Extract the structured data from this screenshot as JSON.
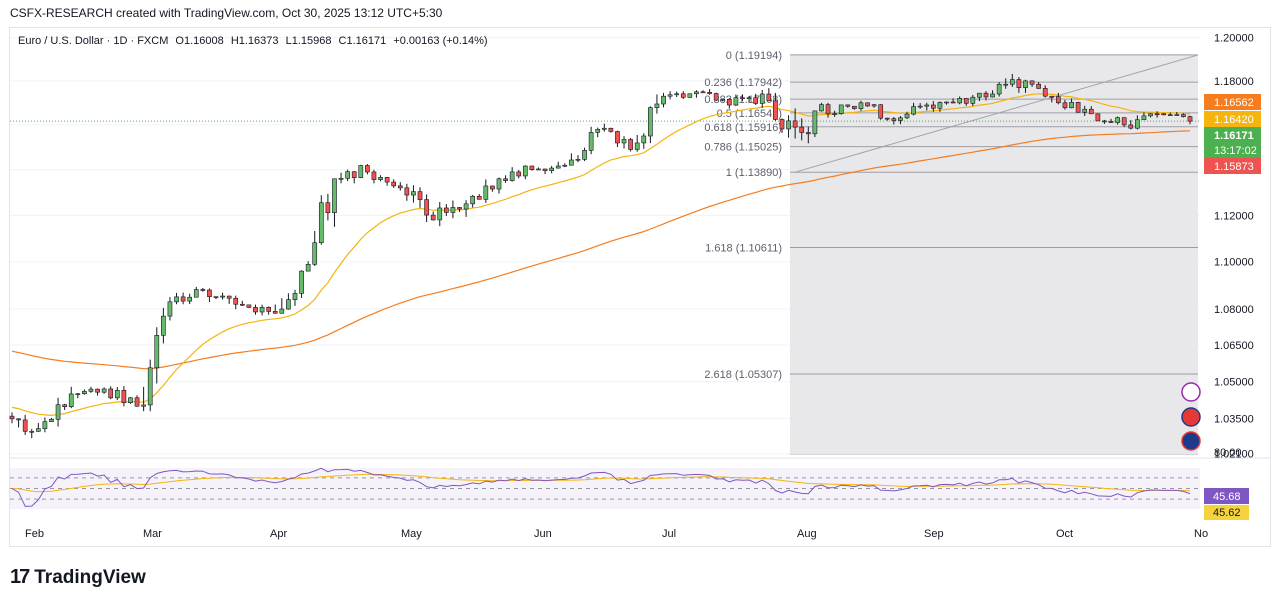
{
  "header": {
    "credit": "CSFX-RESEARCH created with TradingView.com, Oct 30, 2025 13:12 UTC+5:30"
  },
  "legend": {
    "symbol": "Euro / U.S. Dollar · 1D · FXCM",
    "open": "O1.16008",
    "high": "H1.16373",
    "low": "L1.15968",
    "close": "C1.16171",
    "change": "+0.00163 (+0.14%)"
  },
  "branding": {
    "logo_text": "TradingView"
  },
  "colors": {
    "up": "#26a69a",
    "upBody": "#66bb6a",
    "down": "#ef5350",
    "ema_fast": "#f5b50e",
    "ema_slow": "#f57c1f",
    "rsi": "#7e57c2",
    "price_tag": "#4caf50"
  },
  "chart_data": {
    "type": "candlestick",
    "title": "Euro / U.S. Dollar · 1D · FXCM",
    "x_ticks": [
      "Feb",
      "Mar",
      "Apr",
      "May",
      "Jun",
      "Jul",
      "Aug",
      "Sep",
      "Oct",
      "No"
    ],
    "y_ticks": [
      "1.20000",
      "1.18000",
      "1.16000",
      "1.14000",
      "1.12000",
      "1.10000",
      "1.08000",
      "1.06500",
      "1.05000",
      "1.03500",
      "1.02100"
    ],
    "y_scale": "log",
    "ylim": [
      1.0205,
      1.2012
    ],
    "price_axis_labels": [
      {
        "text": "1.16562",
        "color": "#f57c1f"
      },
      {
        "text": "1.16420",
        "color": "#f5b50e"
      },
      {
        "text": "1.16171",
        "color": "#4caf50"
      },
      {
        "text": "13:17:02",
        "color": "#4caf50"
      },
      {
        "text": "1.15873",
        "color": "#ef5350"
      }
    ],
    "fibonacci": {
      "levels": [
        {
          "ratio": "0",
          "price": 1.19194,
          "label": "0 (1.19194)"
        },
        {
          "ratio": "0.236",
          "price": 1.17942,
          "label": "0.236 (1.17942)"
        },
        {
          "ratio": "0.382",
          "price": 1.17168,
          "label": "0.382 (1.17168)"
        },
        {
          "ratio": "0.5",
          "price": 1.16542,
          "label": "0.5 (1.16542)"
        },
        {
          "ratio": "0.618",
          "price": 1.15916,
          "label": "0.618 (1.15916)"
        },
        {
          "ratio": "0.786",
          "price": 1.15025,
          "label": "0.786 (1.15025)"
        },
        {
          "ratio": "1",
          "price": 1.1389,
          "label": "1 (1.13890)"
        },
        {
          "ratio": "1.618",
          "price": 1.10611,
          "label": "1.618 (1.10611)"
        },
        {
          "ratio": "2.618",
          "price": 1.05307,
          "label": "2.618 (1.05307)"
        }
      ]
    },
    "candles_weekly_summary": [
      {
        "week": "Feb W1",
        "open": 1.036,
        "high": 1.044,
        "low": 1.021,
        "close": 1.031
      },
      {
        "week": "Feb W2",
        "open": 1.031,
        "high": 1.048,
        "low": 1.028,
        "close": 1.045
      },
      {
        "week": "Feb W3",
        "open": 1.045,
        "high": 1.051,
        "low": 1.039,
        "close": 1.047
      },
      {
        "week": "Feb W4",
        "open": 1.047,
        "high": 1.053,
        "low": 1.038,
        "close": 1.04
      },
      {
        "week": "Mar W1",
        "open": 1.04,
        "high": 1.089,
        "low": 1.038,
        "close": 1.083
      },
      {
        "week": "Mar W2",
        "open": 1.083,
        "high": 1.095,
        "low": 1.082,
        "close": 1.088
      },
      {
        "week": "Mar W3",
        "open": 1.088,
        "high": 1.095,
        "low": 1.079,
        "close": 1.082
      },
      {
        "week": "Mar W4",
        "open": 1.082,
        "high": 1.085,
        "low": 1.074,
        "close": 1.079
      },
      {
        "week": "Apr W1",
        "open": 1.079,
        "high": 1.114,
        "low": 1.078,
        "close": 1.096
      },
      {
        "week": "Apr W2",
        "open": 1.096,
        "high": 1.148,
        "low": 1.094,
        "close": 1.136
      },
      {
        "week": "Apr W3",
        "open": 1.136,
        "high": 1.157,
        "low": 1.134,
        "close": 1.139
      },
      {
        "week": "Apr W4",
        "open": 1.139,
        "high": 1.142,
        "low": 1.13,
        "close": 1.132
      },
      {
        "week": "May W1",
        "open": 1.132,
        "high": 1.138,
        "low": 1.114,
        "close": 1.118
      },
      {
        "week": "May W2",
        "open": 1.118,
        "high": 1.13,
        "low": 1.107,
        "close": 1.125
      },
      {
        "week": "May W3",
        "open": 1.125,
        "high": 1.142,
        "low": 1.122,
        "close": 1.136
      },
      {
        "week": "May W4",
        "open": 1.136,
        "high": 1.142,
        "low": 1.125,
        "close": 1.14
      },
      {
        "week": "Jun W1",
        "open": 1.14,
        "high": 1.15,
        "low": 1.136,
        "close": 1.142
      },
      {
        "week": "Jun W2",
        "open": 1.142,
        "high": 1.163,
        "low": 1.14,
        "close": 1.158
      },
      {
        "week": "Jun W3",
        "open": 1.158,
        "high": 1.162,
        "low": 1.145,
        "close": 1.149
      },
      {
        "week": "Jun W4",
        "open": 1.149,
        "high": 1.178,
        "low": 1.148,
        "close": 1.173
      },
      {
        "week": "Jul W1",
        "open": 1.173,
        "high": 1.183,
        "low": 1.17,
        "close": 1.175
      },
      {
        "week": "Jul W2",
        "open": 1.175,
        "high": 1.177,
        "low": 1.166,
        "close": 1.169
      },
      {
        "week": "Jul W3",
        "open": 1.169,
        "high": 1.179,
        "low": 1.158,
        "close": 1.174
      },
      {
        "week": "Jul W4",
        "open": 1.174,
        "high": 1.179,
        "low": 1.14,
        "close": 1.159
      },
      {
        "week": "Aug W1",
        "open": 1.159,
        "high": 1.17,
        "low": 1.1389,
        "close": 1.165
      },
      {
        "week": "Aug W2",
        "open": 1.165,
        "high": 1.173,
        "low": 1.16,
        "close": 1.17
      },
      {
        "week": "Aug W3",
        "open": 1.17,
        "high": 1.174,
        "low": 1.159,
        "close": 1.162
      },
      {
        "week": "Aug W4",
        "open": 1.162,
        "high": 1.174,
        "low": 1.159,
        "close": 1.169
      },
      {
        "week": "Sep W1",
        "open": 1.169,
        "high": 1.176,
        "low": 1.161,
        "close": 1.172
      },
      {
        "week": "Sep W2",
        "open": 1.172,
        "high": 1.18,
        "low": 1.165,
        "close": 1.174
      },
      {
        "week": "Sep W3",
        "open": 1.174,
        "high": 1.1919,
        "low": 1.172,
        "close": 1.18
      },
      {
        "week": "Sep W4",
        "open": 1.18,
        "high": 1.183,
        "low": 1.165,
        "close": 1.17
      },
      {
        "week": "Oct W1",
        "open": 1.17,
        "high": 1.178,
        "low": 1.164,
        "close": 1.165
      },
      {
        "week": "Oct W2",
        "open": 1.165,
        "high": 1.167,
        "low": 1.154,
        "close": 1.16
      },
      {
        "week": "Oct W3",
        "open": 1.16,
        "high": 1.173,
        "low": 1.158,
        "close": 1.165
      },
      {
        "week": "Oct W4",
        "open": 1.165,
        "high": 1.166,
        "low": 1.156,
        "close": 1.1617
      }
    ],
    "rsi": {
      "labels": [
        "80.00",
        "45.68",
        "45.62"
      ],
      "current": 45.68,
      "signal": 45.62,
      "levels": [
        70,
        50,
        30
      ]
    }
  }
}
